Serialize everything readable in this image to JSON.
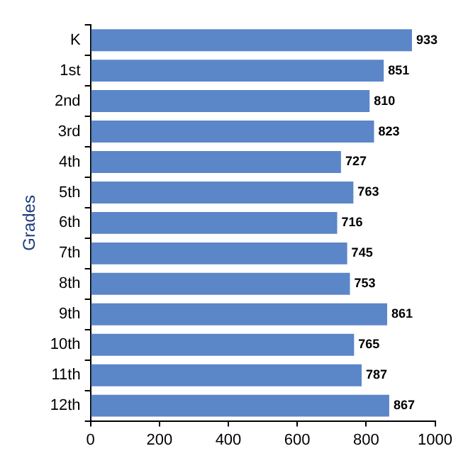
{
  "chart_data": {
    "type": "bar",
    "orientation": "horizontal",
    "ylabel": "Grades",
    "categories": [
      "K",
      "1st",
      "2nd",
      "3rd",
      "4th",
      "5th",
      "6th",
      "7th",
      "8th",
      "9th",
      "10th",
      "11th",
      "12th"
    ],
    "values": [
      933,
      851,
      810,
      823,
      727,
      763,
      716,
      745,
      753,
      861,
      765,
      787,
      867
    ],
    "color": "#5b86c8",
    "xlim": [
      0,
      1000
    ],
    "xticks": [
      0,
      200,
      400,
      600,
      800,
      1000
    ],
    "grid": false,
    "legend": false,
    "data_labels": true
  }
}
